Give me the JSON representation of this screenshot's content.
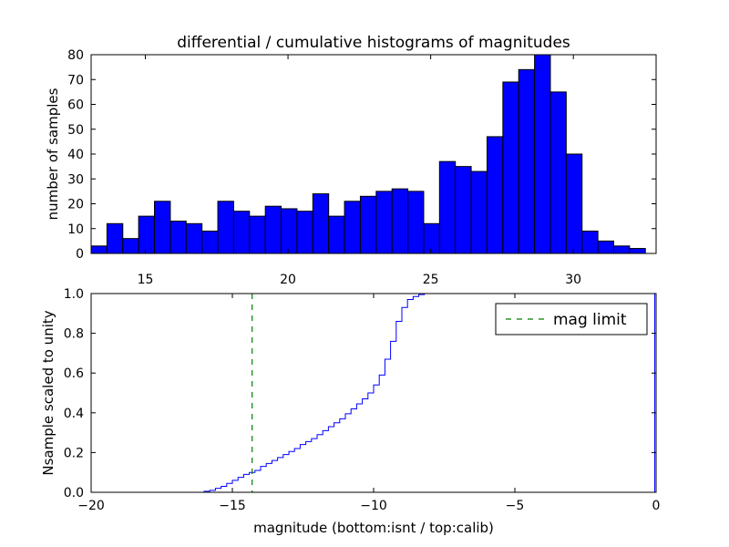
{
  "colors": {
    "bar_fill": "#0000ff",
    "bar_edge": "#000000",
    "cumulative_line": "#0000ff",
    "mag_limit_line": "#008000",
    "background": "#ffffff"
  },
  "chart_data": [
    {
      "type": "bar",
      "title": "differential / cumulative histograms of magnitudes",
      "xlabel": "",
      "ylabel": "number of samples",
      "xlim": [
        13.1,
        32.9
      ],
      "ylim": [
        0,
        80
      ],
      "xticks": [
        "15",
        "20",
        "25",
        "30"
      ],
      "xtick_values": [
        15,
        20,
        25,
        30
      ],
      "yticks": [
        "0",
        "10",
        "20",
        "30",
        "40",
        "50",
        "60",
        "70",
        "80"
      ],
      "ytick_values": [
        0,
        10,
        20,
        30,
        40,
        50,
        60,
        70,
        80
      ],
      "bin_start": 13.1,
      "bin_width": 0.555,
      "values": [
        3,
        12,
        6,
        15,
        21,
        13,
        12,
        9,
        21,
        17,
        15,
        19,
        18,
        17,
        24,
        15,
        21,
        23,
        25,
        26,
        25,
        12,
        37,
        35,
        33,
        47,
        69,
        74,
        80,
        65,
        40,
        9,
        5,
        3,
        2
      ]
    },
    {
      "type": "line",
      "xlabel": "magnitude (bottom:isnt / top:calib)",
      "ylabel": "Nsample scaled to unity",
      "xlim": [
        -20,
        0
      ],
      "ylim": [
        0,
        1.0
      ],
      "xticks": [
        "−20",
        "−15",
        "−10",
        "−5",
        "0"
      ],
      "xtick_values": [
        -20,
        -15,
        -10,
        -5,
        0
      ],
      "yticks": [
        "0.0",
        "0.2",
        "0.4",
        "0.6",
        "0.8",
        "1.0"
      ],
      "ytick_values": [
        0,
        0.2,
        0.4,
        0.6,
        0.8,
        1.0
      ],
      "series": [
        {
          "name": "cumulative",
          "step_start": -16.0,
          "step_width": 0.2,
          "values": [
            0.005,
            0.01,
            0.02,
            0.03,
            0.045,
            0.06,
            0.075,
            0.09,
            0.1,
            0.11,
            0.13,
            0.145,
            0.16,
            0.175,
            0.19,
            0.205,
            0.22,
            0.24,
            0.255,
            0.27,
            0.29,
            0.31,
            0.33,
            0.35,
            0.37,
            0.395,
            0.42,
            0.445,
            0.47,
            0.5,
            0.54,
            0.59,
            0.67,
            0.76,
            0.86,
            0.93,
            0.97,
            0.985,
            0.995,
            1.0
          ],
          "final_x": -7.4,
          "final_drop_x": -0.05
        }
      ],
      "mag_limit": {
        "label": "mag limit",
        "x": -14.3
      },
      "legend": {
        "location": "upper right",
        "entries": [
          "mag limit"
        ]
      }
    }
  ]
}
